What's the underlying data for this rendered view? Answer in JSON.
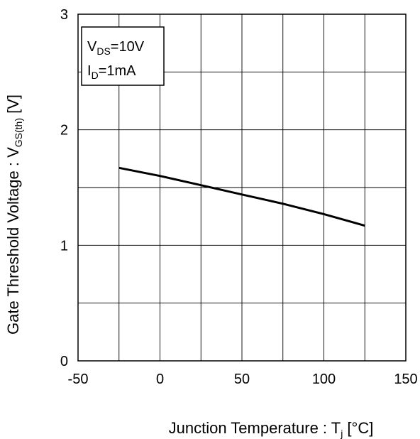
{
  "chart_data": {
    "type": "line",
    "title": "",
    "xlabel": {
      "main": "Junction Temperature : T",
      "sub": "j",
      "unit": " [°C]"
    },
    "ylabel": {
      "main": "Gate Threshold Voltage : V",
      "sub": "GS(th)",
      "unit": " [V]"
    },
    "xlim": [
      -50,
      150
    ],
    "ylim": [
      0,
      3
    ],
    "xticks": [
      -50,
      0,
      50,
      100,
      150
    ],
    "xtick_labels": [
      "-50",
      "0",
      "50",
      "100",
      "150"
    ],
    "yticks": [
      0,
      1,
      2,
      3
    ],
    "ytick_labels": [
      "0",
      "1",
      "2",
      "3"
    ],
    "grid": true,
    "annotations": {
      "line1": {
        "main": "V",
        "sub": "DS",
        "value": "=10V"
      },
      "line2": {
        "main": "I",
        "sub": "D",
        "value": "=1mA"
      }
    },
    "series": [
      {
        "x": [
          -25,
          0,
          25,
          50,
          75,
          100,
          125
        ],
        "y": [
          1.67,
          1.6,
          1.52,
          1.44,
          1.36,
          1.27,
          1.17
        ],
        "color": "#000000"
      }
    ]
  }
}
